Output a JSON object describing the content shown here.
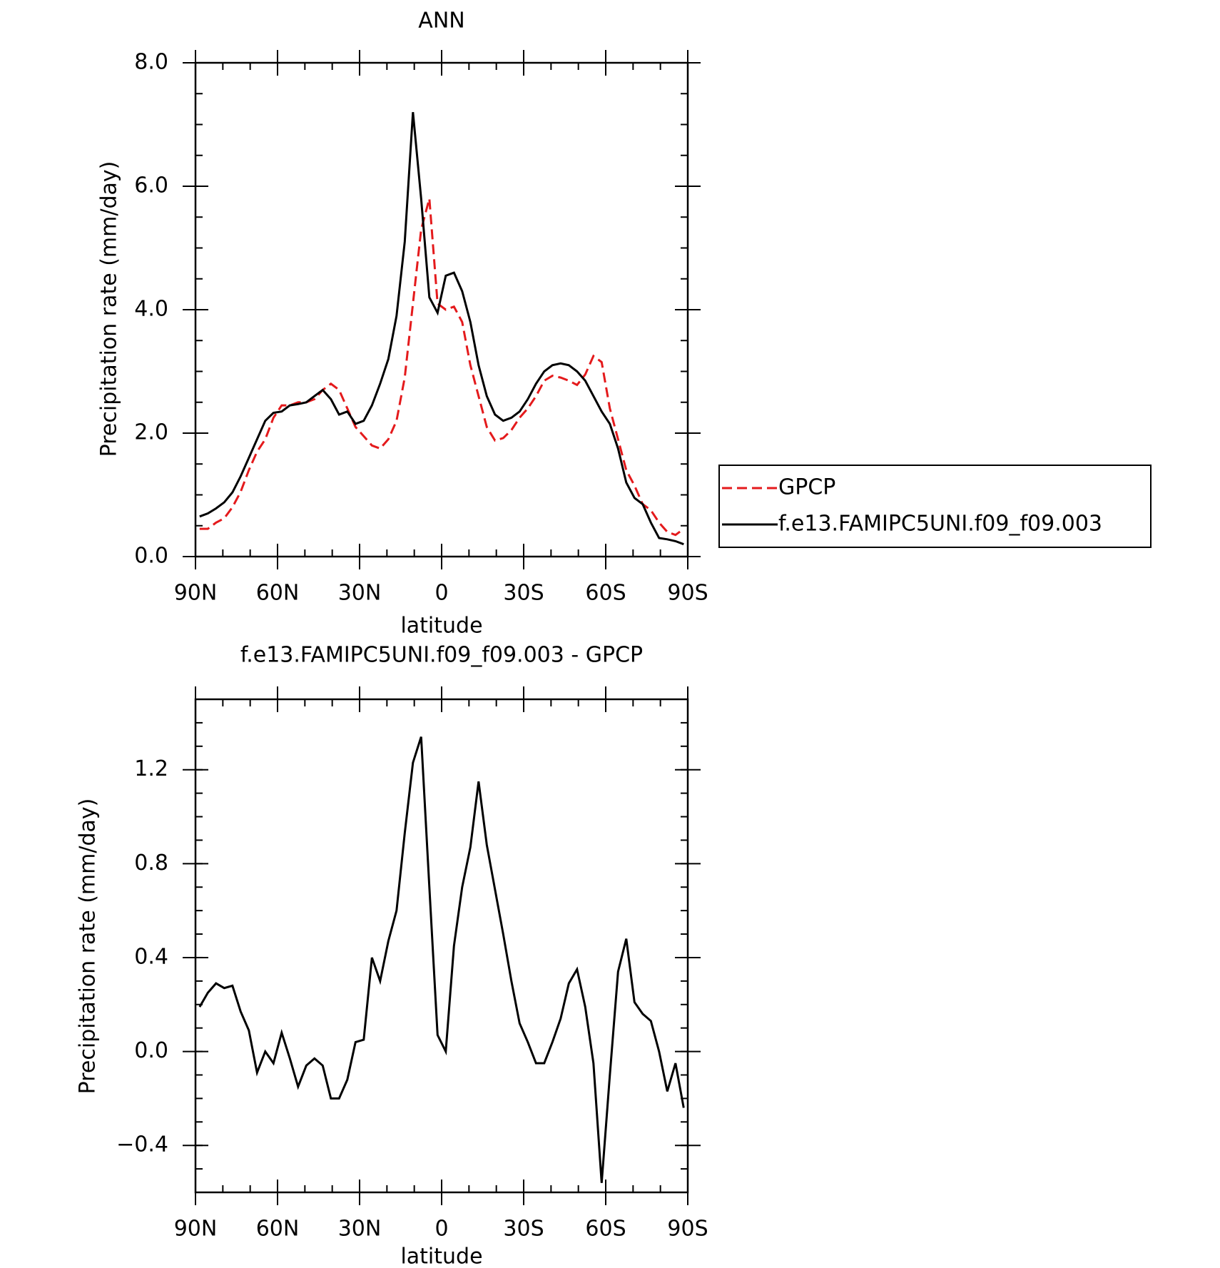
{
  "chart_data": [
    {
      "type": "line",
      "title": "ANN",
      "xlabel": "latitude",
      "ylabel": "Precipitation rate (mm/day)",
      "x": [
        88.5,
        85.5,
        82.5,
        79.5,
        76.5,
        73.5,
        70.5,
        67.5,
        64.5,
        61.5,
        58.5,
        55.5,
        52.5,
        49.5,
        46.5,
        43.5,
        40.5,
        37.5,
        34.5,
        31.5,
        28.5,
        25.5,
        22.5,
        19.5,
        16.5,
        13.5,
        10.5,
        7.5,
        4.5,
        1.5,
        -1.5,
        -4.5,
        -7.5,
        -10.5,
        -13.5,
        -16.5,
        -19.5,
        -22.5,
        -25.5,
        -28.5,
        -31.5,
        -34.5,
        -37.5,
        -40.5,
        -43.5,
        -46.5,
        -49.5,
        -52.5,
        -55.5,
        -58.5,
        -61.5,
        -64.5,
        -67.5,
        -70.5,
        -73.5,
        -76.5,
        -79.5,
        -82.5,
        -85.5,
        -88.5
      ],
      "series": [
        {
          "name": "GPCP",
          "color": "#e41a1c",
          "style": "dashed",
          "values": [
            0.45,
            0.45,
            0.55,
            0.62,
            0.8,
            1.05,
            1.4,
            1.7,
            1.9,
            2.25,
            2.45,
            2.45,
            2.5,
            2.5,
            2.55,
            2.7,
            2.8,
            2.7,
            2.4,
            2.1,
            1.95,
            1.8,
            1.75,
            1.9,
            2.2,
            2.9,
            4.1,
            5.3,
            5.8,
            4.1,
            4.0,
            4.05,
            3.8,
            3.1,
            2.6,
            2.1,
            1.88,
            1.92,
            2.05,
            2.25,
            2.4,
            2.6,
            2.85,
            2.93,
            2.9,
            2.85,
            2.78,
            2.95,
            3.25,
            3.15,
            2.4,
            1.9,
            1.4,
            1.15,
            0.85,
            0.75,
            0.55,
            0.4,
            0.35,
            0.45
          ]
        },
        {
          "name": "f.e13.FAMIPC5UNI.f09_f09.003",
          "color": "#000000",
          "style": "solid",
          "values": [
            0.65,
            0.7,
            0.78,
            0.88,
            1.04,
            1.3,
            1.6,
            1.9,
            2.2,
            2.33,
            2.35,
            2.45,
            2.47,
            2.5,
            2.6,
            2.7,
            2.55,
            2.3,
            2.35,
            2.15,
            2.2,
            2.45,
            2.8,
            3.2,
            3.9,
            5.1,
            7.2,
            5.8,
            4.2,
            3.95,
            4.55,
            4.6,
            4.3,
            3.8,
            3.1,
            2.6,
            2.3,
            2.2,
            2.25,
            2.35,
            2.55,
            2.8,
            3.0,
            3.1,
            3.13,
            3.1,
            3.0,
            2.85,
            2.6,
            2.35,
            2.15,
            1.75,
            1.2,
            0.95,
            0.85,
            0.55,
            0.3,
            0.28,
            0.25,
            0.2
          ]
        }
      ],
      "xlim": [
        90,
        -90
      ],
      "xticks": [
        {
          "value": 90,
          "label": "90N"
        },
        {
          "value": 60,
          "label": "60N"
        },
        {
          "value": 30,
          "label": "30N"
        },
        0,
        {
          "value": -30,
          "label": "30S"
        },
        {
          "value": -60,
          "label": "60S"
        },
        {
          "value": -90,
          "label": "90S"
        }
      ],
      "ylim": [
        0,
        8
      ],
      "yticks": [
        {
          "value": 0,
          "label": "0.0"
        },
        {
          "value": 2,
          "label": "2.0"
        },
        {
          "value": 4,
          "label": "4.0"
        },
        {
          "value": 6,
          "label": "6.0"
        },
        {
          "value": 8,
          "label": "8.0"
        }
      ],
      "legend": "right"
    },
    {
      "type": "line",
      "title": "f.e13.FAMIPC5UNI.f09_f09.003 - GPCP",
      "xlabel": "latitude",
      "ylabel": "Precipitation rate (mm/day)",
      "x": [
        88.5,
        85.5,
        82.5,
        79.5,
        76.5,
        73.5,
        70.5,
        67.5,
        64.5,
        61.5,
        58.5,
        55.5,
        52.5,
        49.5,
        46.5,
        43.5,
        40.5,
        37.5,
        34.5,
        31.5,
        28.5,
        25.5,
        22.5,
        19.5,
        16.5,
        13.5,
        10.5,
        7.5,
        4.5,
        1.5,
        -1.5,
        -4.5,
        -7.5,
        -10.5,
        -13.5,
        -16.5,
        -19.5,
        -22.5,
        -25.5,
        -28.5,
        -31.5,
        -34.5,
        -37.5,
        -40.5,
        -43.5,
        -46.5,
        -49.5,
        -52.5,
        -55.5,
        -58.5,
        -61.5,
        -64.5,
        -67.5,
        -70.5,
        -73.5,
        -76.5,
        -79.5,
        -82.5,
        -85.5,
        -88.5
      ],
      "series": [
        {
          "color": "#000000",
          "style": "solid",
          "values": [
            0.19,
            0.25,
            0.29,
            0.27,
            0.28,
            0.17,
            0.09,
            -0.09,
            0,
            -0.05,
            0.08,
            -0.03,
            -0.15,
            -0.06,
            -0.03,
            -0.06,
            -0.2,
            -0.2,
            -0.12,
            0.04,
            0.05,
            0.4,
            0.3,
            0.47,
            0.6,
            0.93,
            1.23,
            1.34,
            0.7,
            0.07,
            0,
            0.45,
            0.7,
            0.87,
            1.15,
            0.88,
            0.69,
            0.5,
            0.3,
            0.12,
            0.04,
            -0.05,
            -0.05,
            0.04,
            0.14,
            0.29,
            0.35,
            0.19,
            -0.05,
            -0.56,
            -0.1,
            0.34,
            0.48,
            0.21,
            0.16,
            0.13,
            0,
            -0.17,
            -0.05,
            -0.24
          ]
        }
      ],
      "xlim": [
        90,
        -90
      ],
      "xticks": [
        {
          "value": 90,
          "label": "90N"
        },
        {
          "value": 60,
          "label": "60N"
        },
        {
          "value": 30,
          "label": "30N"
        },
        0,
        {
          "value": -30,
          "label": "30S"
        },
        {
          "value": -60,
          "label": "60S"
        },
        {
          "value": -90,
          "label": "90S"
        }
      ],
      "ylim": [
        -0.6,
        1.5
      ],
      "yticks": [
        {
          "value": -0.4,
          "label": "−0.4"
        },
        {
          "value": 0,
          "label": "0.0"
        },
        0.4,
        0.8,
        1.2
      ]
    }
  ]
}
